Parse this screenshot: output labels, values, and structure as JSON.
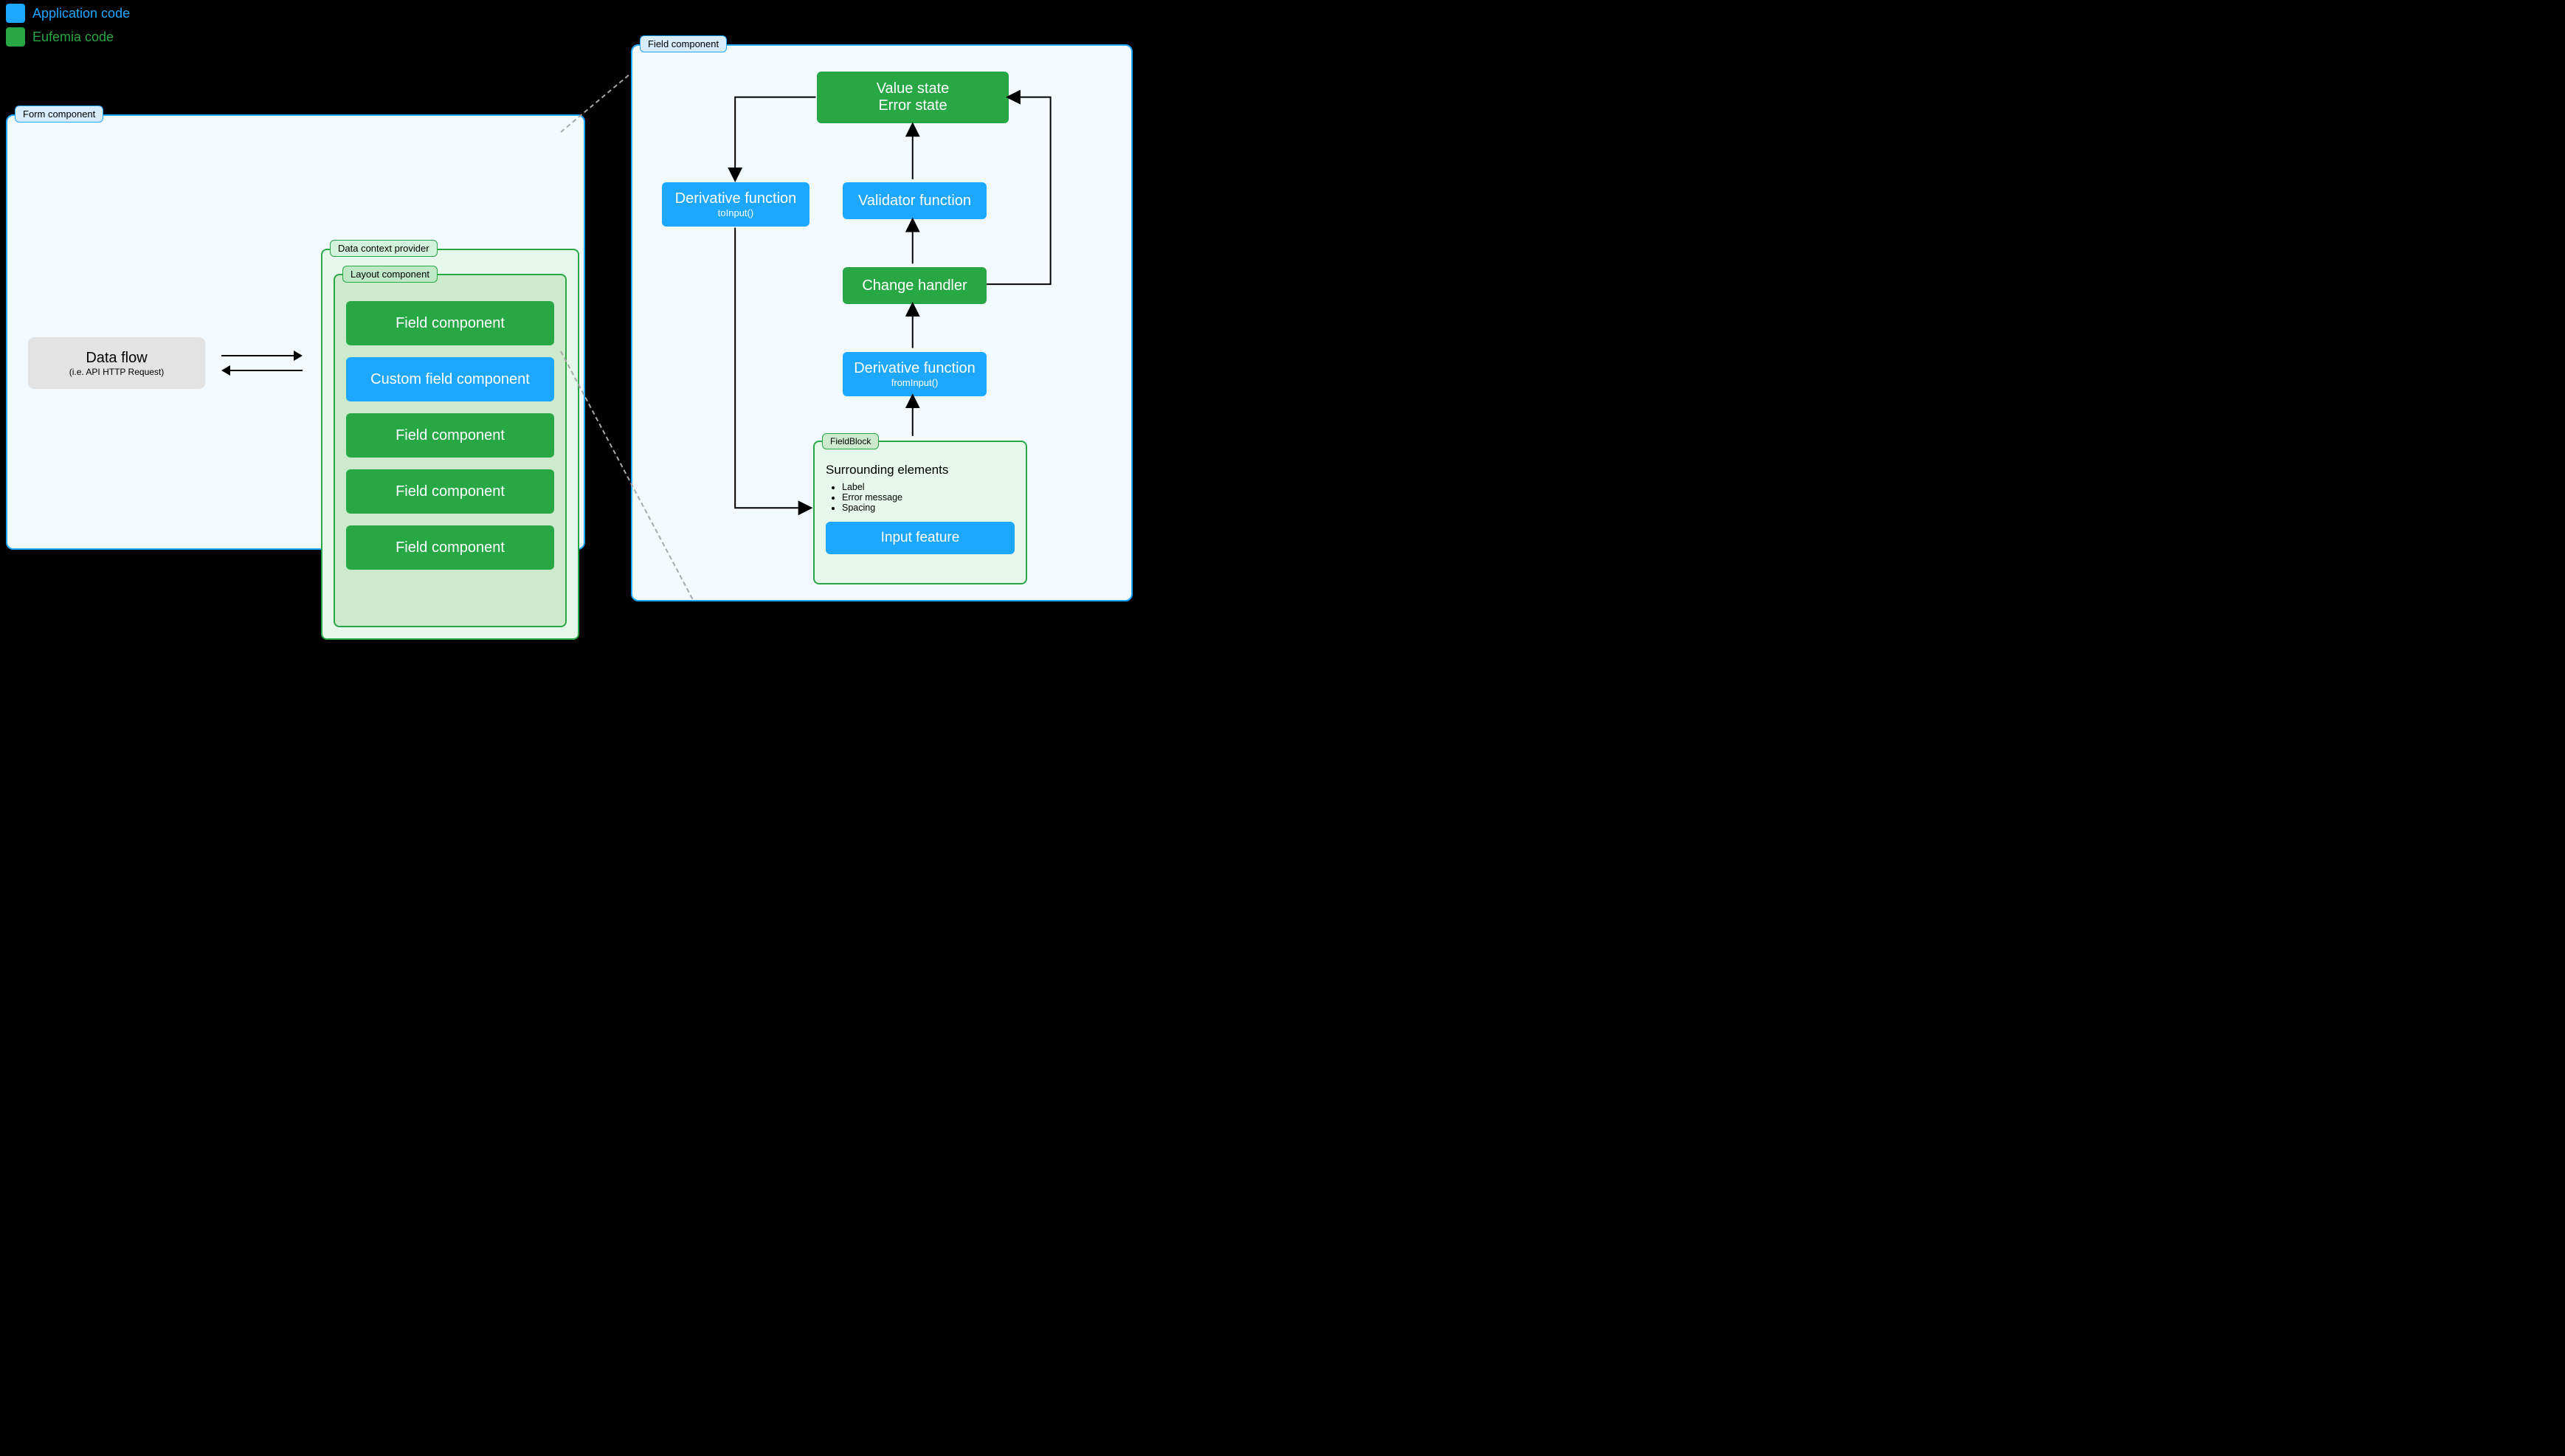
{
  "colors": {
    "app_blue": "#1ea7ff",
    "eufemia_green": "#28a745",
    "panel_bg_blue": "#f2f9ff",
    "panel_bg_green_light": "#e6f7ec",
    "panel_bg_green_mid": "#cdeacc",
    "data_flow_bg": "#e3e3e3",
    "black": "#000000",
    "dash_gray": "#a8a8a8"
  },
  "legend": {
    "app": {
      "label": "Application code",
      "color": "#1ea7ff"
    },
    "euf": {
      "label": "Eufemia code",
      "color": "#28a745"
    }
  },
  "form_panel": {
    "label": "Form component"
  },
  "data_flow": {
    "title": "Data flow",
    "subtitle": "(i.e. API HTTP Request)"
  },
  "ctx": {
    "label": "Data context provider"
  },
  "layout": {
    "label": "Layout component",
    "items": [
      {
        "label": "Field component",
        "kind": "green"
      },
      {
        "label": "Custom field component",
        "kind": "blue"
      },
      {
        "label": "Field component",
        "kind": "green"
      },
      {
        "label": "Field component",
        "kind": "green"
      },
      {
        "label": "Field component",
        "kind": "green"
      }
    ]
  },
  "field_panel": {
    "label": "Field component"
  },
  "nodes": {
    "value_state": {
      "line1": "Value state",
      "line2": "Error state"
    },
    "derivative_to": {
      "title": "Derivative function",
      "sub": "toInput()"
    },
    "validator": {
      "title": "Validator function"
    },
    "change_handler": {
      "title": "Change handler"
    },
    "derivative_from": {
      "title": "Derivative function",
      "sub": "fromInput()"
    },
    "fieldblock": {
      "label": "FieldBlock",
      "heading": "Surrounding elements",
      "bullets": [
        "Label",
        "Error message",
        "Spacing"
      ],
      "input_feature": "Input feature"
    }
  },
  "diagram": {
    "type": "flowchart",
    "arrows_right_panel": [
      {
        "from": "value_state",
        "to": "derivative_to",
        "path": "down-left"
      },
      {
        "from": "derivative_to",
        "to": "fieldblock",
        "path": "down-right"
      },
      {
        "from": "fieldblock",
        "to": "derivative_from",
        "path": "up"
      },
      {
        "from": "derivative_from",
        "to": "change_handler",
        "path": "up"
      },
      {
        "from": "change_handler",
        "to": "validator",
        "path": "up"
      },
      {
        "from": "validator",
        "to": "value_state",
        "path": "up"
      },
      {
        "from": "change_handler",
        "to": "value_state",
        "path": "right-up-left"
      }
    ],
    "arrow_stroke_width": 2,
    "arrow_color": "#000000"
  }
}
